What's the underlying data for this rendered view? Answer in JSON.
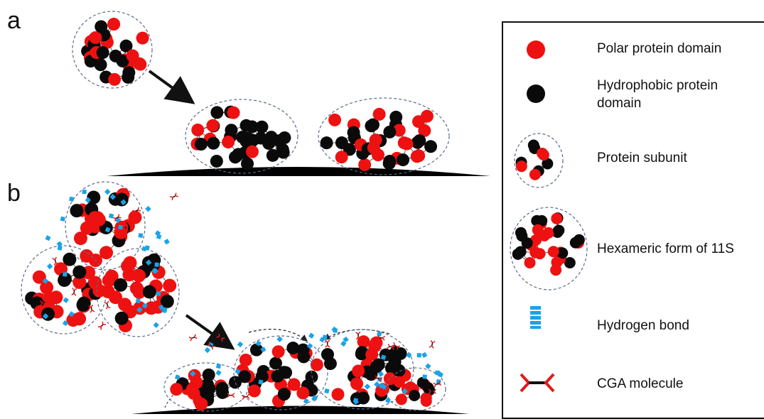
{
  "panels": {
    "a_label": "a",
    "b_label": "b"
  },
  "legend": {
    "items": [
      {
        "label": "Polar protein domain"
      },
      {
        "label": "Hydrophobic protein domain"
      },
      {
        "label": "Protein subunit"
      },
      {
        "label": "Hexameric form of 11S"
      },
      {
        "label": "Hydrogen bond"
      },
      {
        "label": "CGA molecule"
      }
    ]
  },
  "colors": {
    "polar": "#ee1111",
    "hydrophobic": "#0a0a0a",
    "hydrogen_bond": "#1aa3e8",
    "cga": "#e01b1b",
    "outline": "#5a6a8a",
    "surface": "#000000"
  }
}
